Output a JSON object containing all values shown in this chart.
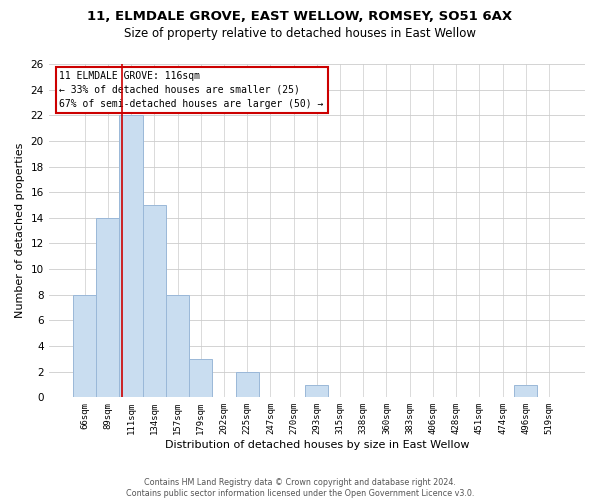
{
  "title1": "11, ELMDALE GROVE, EAST WELLOW, ROMSEY, SO51 6AX",
  "title2": "Size of property relative to detached houses in East Wellow",
  "xlabel": "Distribution of detached houses by size in East Wellow",
  "ylabel": "Number of detached properties",
  "footer1": "Contains HM Land Registry data © Crown copyright and database right 2024.",
  "footer2": "Contains public sector information licensed under the Open Government Licence v3.0.",
  "bar_labels": [
    "66sqm",
    "89sqm",
    "111sqm",
    "134sqm",
    "157sqm",
    "179sqm",
    "202sqm",
    "225sqm",
    "247sqm",
    "270sqm",
    "293sqm",
    "315sqm",
    "338sqm",
    "360sqm",
    "383sqm",
    "406sqm",
    "428sqm",
    "451sqm",
    "474sqm",
    "496sqm",
    "519sqm"
  ],
  "bar_values": [
    8,
    14,
    22,
    15,
    8,
    3,
    0,
    2,
    0,
    0,
    1,
    0,
    0,
    0,
    0,
    0,
    0,
    0,
    0,
    1,
    0
  ],
  "bar_color": "#c9ddf0",
  "bar_edge_color": "#9ab8d8",
  "vline_color": "#cc0000",
  "vline_bar_idx": 2,
  "annotation_box_text": "11 ELMDALE GROVE: 116sqm\n← 33% of detached houses are smaller (25)\n67% of semi-detached houses are larger (50) →",
  "ylim": [
    0,
    26
  ],
  "yticks": [
    0,
    2,
    4,
    6,
    8,
    10,
    12,
    14,
    16,
    18,
    20,
    22,
    24,
    26
  ],
  "bg_color": "#ffffff",
  "grid_color": "#cccccc"
}
